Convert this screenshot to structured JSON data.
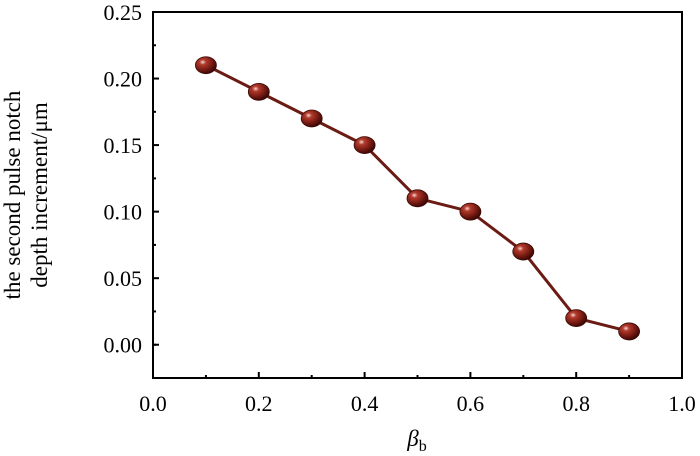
{
  "chart_data": {
    "type": "line",
    "title": "",
    "xlabel": {
      "symbol": "β",
      "subscript": "b"
    },
    "ylabel": [
      "the second pulse notch",
      "depth increment/μm"
    ],
    "xlim": [
      0.0,
      1.0
    ],
    "ylim": [
      -0.025,
      0.25
    ],
    "xticks": [
      "0.0",
      "0.2",
      "0.4",
      "0.6",
      "0.8",
      "1.0"
    ],
    "yticks": [
      "0.00",
      "0.05",
      "0.10",
      "0.15",
      "0.20",
      "0.25"
    ],
    "grid": false,
    "legend": "none",
    "series": [
      {
        "x": [
          0.1,
          0.2,
          0.3,
          0.4,
          0.5,
          0.6,
          0.7,
          0.8,
          0.9
        ],
        "y": [
          0.21,
          0.19,
          0.17,
          0.15,
          0.11,
          0.1,
          0.07,
          0.02,
          0.01
        ],
        "line_color": "#6b1a14",
        "marker_color": "#7a1f15"
      }
    ]
  }
}
